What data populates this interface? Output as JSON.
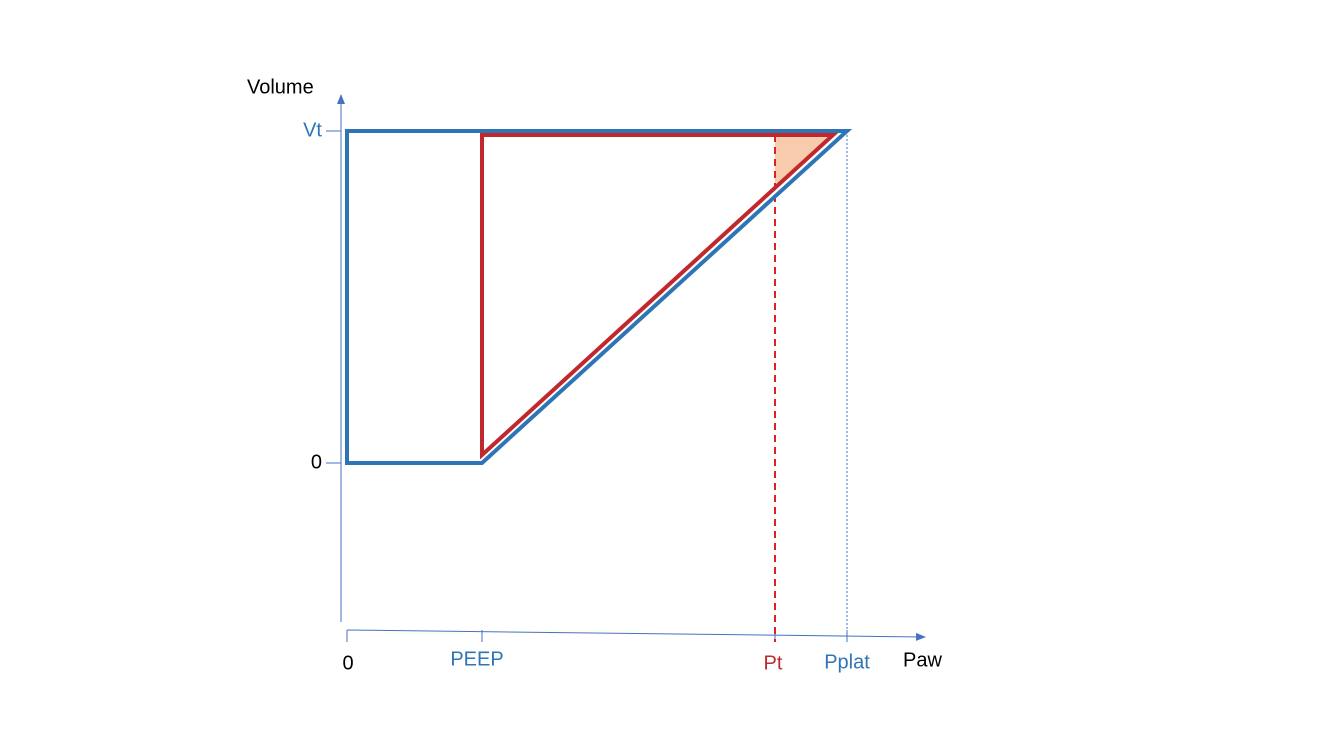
{
  "axes": {
    "y_label": "Volume",
    "x_label": "Paw"
  },
  "y_ticks": [
    "Vt",
    "0"
  ],
  "x_ticks": [
    "0",
    "PEEP",
    "Pt",
    "Pplat"
  ]
}
